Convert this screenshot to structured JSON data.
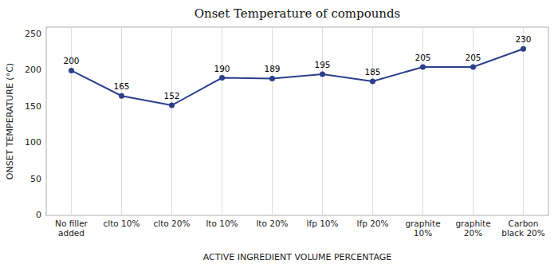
{
  "chart_data": {
    "type": "line",
    "title": "Onset Temperature of compounds",
    "xlabel": "ACTIVE INGREDIENT VOLUME PERCENTAGE",
    "ylabel": "ONSET TEMPERATURE (°C)",
    "categories": [
      "No filler\nadded",
      "clto 10%",
      "clto 20%",
      "lto 10%",
      "lto 20%",
      "lfp 10%",
      "lfp 20%",
      "graphite\n10%",
      "graphite\n20%",
      "Carbon\nblack 20%"
    ],
    "values": [
      200,
      165,
      152,
      190,
      189,
      195,
      185,
      205,
      205,
      230
    ],
    "color": "#2B3F8C",
    "marker": "circle",
    "ylim": [
      0,
      260
    ],
    "yticks": [
      0,
      50,
      100,
      150,
      200,
      250
    ],
    "grid": "x",
    "data_labels": true
  }
}
